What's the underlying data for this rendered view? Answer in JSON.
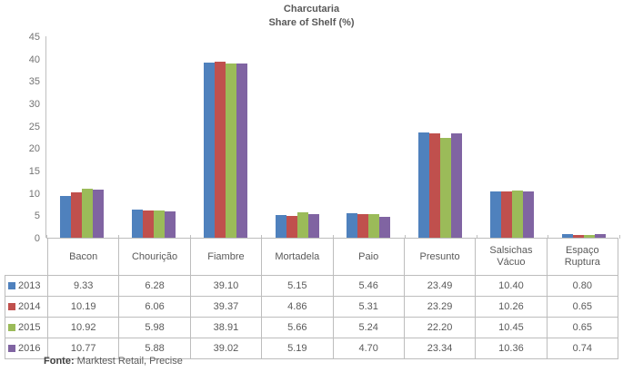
{
  "title": {
    "line1": "Charcutaria",
    "line2": "Share of Shelf (%)"
  },
  "chart_data": {
    "type": "bar",
    "title": "Charcutaria",
    "subtitle": "Share of Shelf (%)",
    "categories": [
      "Bacon",
      "Chourição",
      "Fiambre",
      "Mortadela",
      "Paio",
      "Presunto",
      "Salsichas Vácuo",
      "Espaço Ruptura"
    ],
    "series": [
      {
        "name": "2013",
        "color": "#4F81BD",
        "values": [
          9.33,
          6.28,
          39.1,
          5.15,
          5.46,
          23.49,
          10.4,
          0.8
        ]
      },
      {
        "name": "2014",
        "color": "#C0504D",
        "values": [
          10.19,
          6.06,
          39.37,
          4.86,
          5.31,
          23.29,
          10.26,
          0.65
        ]
      },
      {
        "name": "2015",
        "color": "#9BBB59",
        "values": [
          10.92,
          5.98,
          38.91,
          5.66,
          5.24,
          22.2,
          10.45,
          0.65
        ]
      },
      {
        "name": "2016",
        "color": "#8064A2",
        "values": [
          10.77,
          5.88,
          39.02,
          5.19,
          4.7,
          23.34,
          10.36,
          0.74
        ]
      }
    ],
    "ylim": [
      0,
      45
    ],
    "yticks": [
      0,
      5,
      10,
      15,
      20,
      25,
      30,
      35,
      40,
      45
    ],
    "grid": false,
    "legend_position": "table-left"
  },
  "table": {
    "columns": [
      "Bacon",
      "Chourição",
      "Fiambre",
      "Mortadela",
      "Paio",
      "Presunto",
      "Salsichas Vácuo",
      "Espaço Ruptura"
    ],
    "rows": [
      {
        "year": "2013",
        "values": [
          "9.33",
          "6.28",
          "39.10",
          "5.15",
          "5.46",
          "23.49",
          "10.40",
          "0.80"
        ]
      },
      {
        "year": "2014",
        "values": [
          "10.19",
          "6.06",
          "39.37",
          "4.86",
          "5.31",
          "23.29",
          "10.26",
          "0.65"
        ]
      },
      {
        "year": "2015",
        "values": [
          "10.92",
          "5.98",
          "38.91",
          "5.66",
          "5.24",
          "22.20",
          "10.45",
          "0.65"
        ]
      },
      {
        "year": "2016",
        "values": [
          "10.77",
          "5.88",
          "39.02",
          "5.19",
          "4.70",
          "23.34",
          "10.36",
          "0.74"
        ]
      }
    ]
  },
  "source": {
    "label": "Fonte:",
    "text": " Marktest Retail, Precise"
  },
  "colors": {
    "axis": "#BFBFBF",
    "table_border": "#BDBDBD",
    "text": "#595959",
    "tick_label": "#737373",
    "series_2013": "#4F81BD",
    "series_2014": "#C0504D",
    "series_2015": "#9BBB59",
    "series_2016": "#8064A2"
  }
}
